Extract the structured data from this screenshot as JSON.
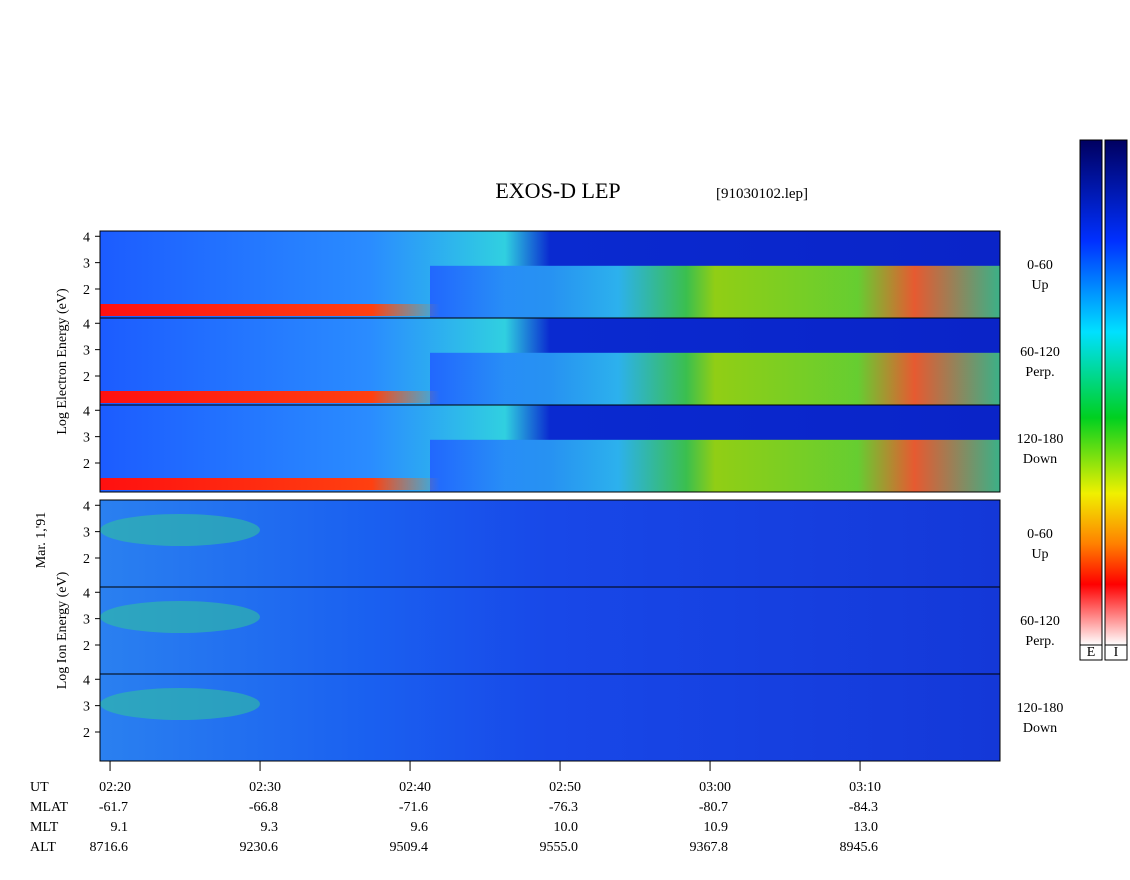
{
  "chart_data": {
    "type": "spectrogram",
    "title": "EXOS-D LEP",
    "file": "[91030102.lep]",
    "date_label": "Mar. 1,'91",
    "groups": [
      {
        "ylabel": "Log Electron Energy (eV)",
        "colorbar_label": "E",
        "panels": [
          {
            "lines": [
              "0-60",
              "Up"
            ]
          },
          {
            "lines": [
              "60-120",
              "Perp."
            ]
          },
          {
            "lines": [
              "120-180",
              "Down"
            ]
          }
        ]
      },
      {
        "ylabel": "Log Ion Energy (eV)",
        "colorbar_label": "I",
        "panels": [
          {
            "lines": [
              "0-60",
              "Up"
            ]
          },
          {
            "lines": [
              "60-120",
              "Perp."
            ]
          },
          {
            "lines": [
              "120-180",
              "Down"
            ]
          }
        ]
      }
    ],
    "ylim": [
      0.9,
      4.2
    ],
    "yticks": [
      2,
      3,
      4
    ],
    "xlim": [
      19.33,
      79.33
    ],
    "xticks": [
      {
        "value": 20,
        "label": "02:20"
      },
      {
        "value": 30,
        "label": "02:30"
      },
      {
        "value": 40,
        "label": "02:40"
      },
      {
        "value": 50,
        "label": "02:50"
      },
      {
        "value": 60,
        "label": "03:00"
      },
      {
        "value": 70,
        "label": "03:10"
      }
    ],
    "x_row_label": "UT",
    "ephemeris": [
      {
        "name": "MLAT",
        "values": [
          "-61.7",
          "-66.8",
          "-71.6",
          "-76.3",
          "-80.7",
          "-84.3"
        ]
      },
      {
        "name": "MLT",
        "values": [
          "9.1",
          "9.3",
          "9.6",
          "10.0",
          "10.9",
          "13.0"
        ]
      },
      {
        "name": "ALT",
        "values": [
          "8716.6",
          "9230.6",
          "9509.4",
          "9555.0",
          "9367.8",
          "8945.6"
        ]
      }
    ]
  }
}
